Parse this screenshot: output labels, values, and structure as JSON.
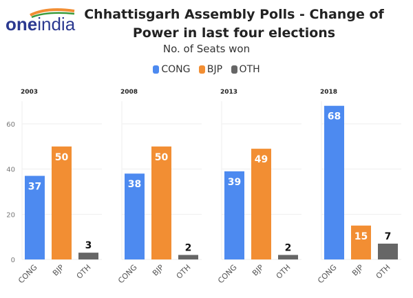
{
  "logo": {
    "text": "oneindia"
  },
  "title": "Chhattisgarh Assembly Polls - Change of Power in last four elections",
  "subtitle": "No. of Seats won",
  "colors": {
    "CONG": "#4d8af0",
    "BJP": "#f28e33",
    "OTH": "#666666"
  },
  "chart_data": {
    "type": "bar",
    "title": "Chhattisgarh Assembly Polls - Change of Power in last four elections",
    "subtitle": "No. of Seats won",
    "legend": [
      "CONG",
      "BJP",
      "OTH"
    ],
    "legend_position": "top",
    "ylim": [
      0,
      70
    ],
    "yticks": [
      0,
      20,
      40,
      60
    ],
    "grid": true,
    "categories": [
      "CONG",
      "BJP",
      "OTH"
    ],
    "panels": [
      {
        "label": "2003",
        "values": [
          37,
          50,
          3
        ]
      },
      {
        "label": "2008",
        "values": [
          38,
          50,
          2
        ]
      },
      {
        "label": "2013",
        "values": [
          39,
          49,
          2
        ]
      },
      {
        "label": "2018",
        "values": [
          68,
          15,
          7
        ]
      }
    ]
  }
}
